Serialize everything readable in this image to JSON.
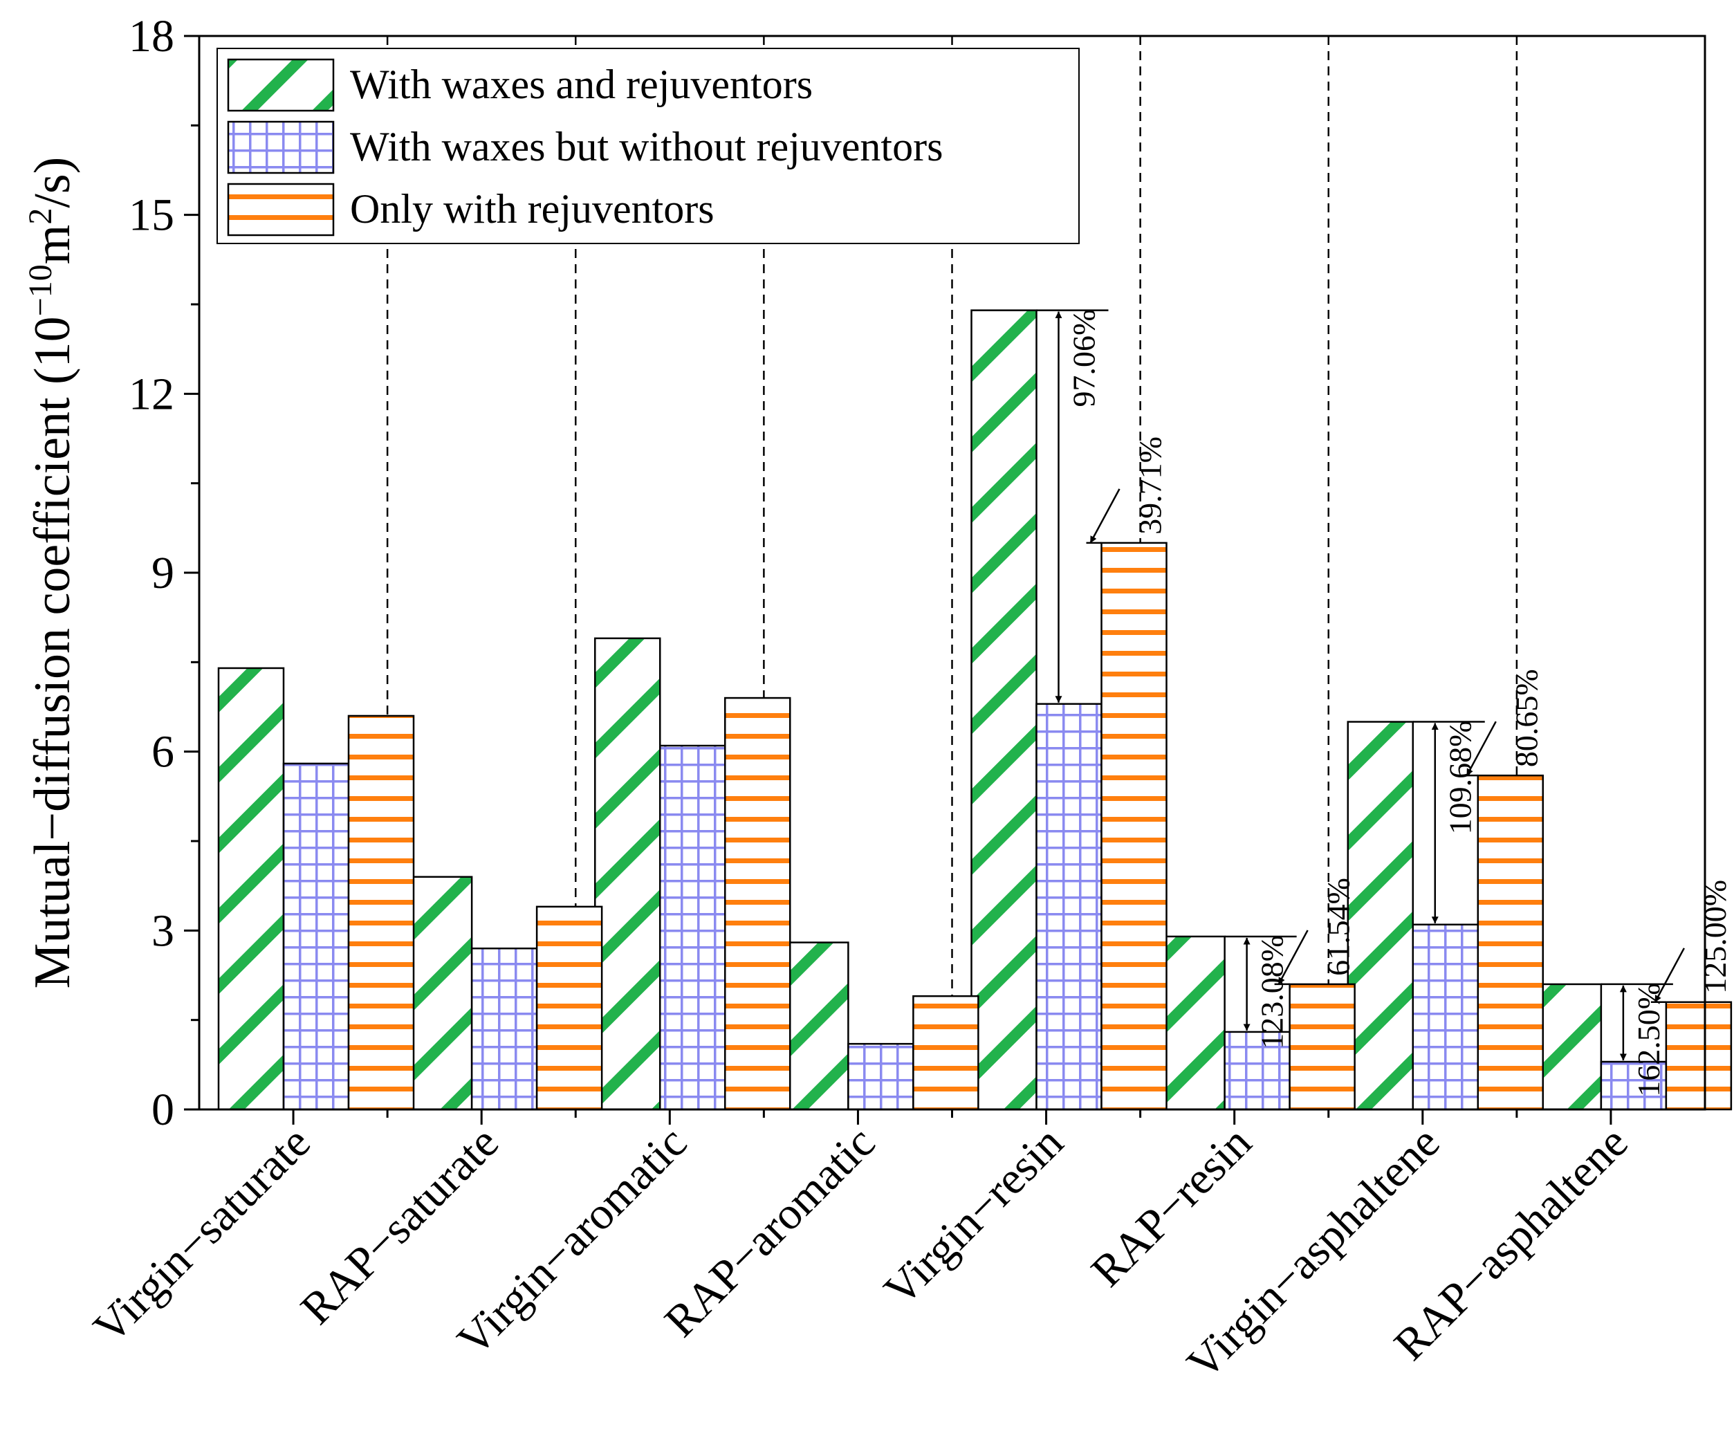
{
  "chart_data": {
    "type": "bar",
    "title": "",
    "xlabel": "",
    "ylabel": {
      "main": "Mutual−diffusion coefficient (10",
      "exp1": "−10",
      "mid": "m",
      "exp2": "2",
      "end": "/s)"
    },
    "ylim": [
      0,
      18
    ],
    "yticks": [
      0,
      3,
      6,
      9,
      12,
      15,
      18
    ],
    "ytick_labels": [
      "0",
      "3",
      "6",
      "9",
      "12",
      "15",
      "18"
    ],
    "grid": false,
    "legend_position": "top-left",
    "categories": [
      "Virgin−saturate",
      "RAP−saturate",
      "Virgin−aromatic",
      "RAP−aromatic",
      "Virgin−resin",
      "RAP−resin",
      "Virgin−asphaltene",
      "RAP−asphaltene"
    ],
    "series": [
      {
        "name": "With waxes and rejuventors",
        "pattern": "diagonal",
        "color": "#22b24c",
        "values": [
          7.4,
          3.9,
          7.9,
          2.8,
          13.4,
          2.9,
          6.5,
          2.1
        ]
      },
      {
        "name": "With waxes but without rejuventors",
        "pattern": "grid",
        "color": "#8a8af0",
        "values": [
          5.8,
          2.7,
          6.1,
          1.1,
          6.8,
          1.3,
          3.1,
          0.8
        ]
      },
      {
        "name": "Only with rejuventors",
        "pattern": "horizontal",
        "color": "#ff7f0e",
        "values": [
          6.6,
          3.4,
          6.9,
          1.9,
          9.5,
          2.1,
          5.6,
          1.8
        ]
      }
    ],
    "annotations": [
      {
        "category_index": 4,
        "from_value": 13.4,
        "to_value": 6.8,
        "label": "97.06%"
      },
      {
        "category_index": 4,
        "from_value": 9.5,
        "to_value": 6.8,
        "label": "39.71%"
      },
      {
        "category_index": 5,
        "from_value": 2.9,
        "to_value": 1.3,
        "label": "123.08%"
      },
      {
        "category_index": 5,
        "from_value": 2.1,
        "to_value": 1.3,
        "label": "61.54%"
      },
      {
        "category_index": 6,
        "from_value": 6.5,
        "to_value": 3.1,
        "label": "109.68%"
      },
      {
        "category_index": 6,
        "from_value": 5.6,
        "to_value": 3.1,
        "label": "80.65%"
      },
      {
        "category_index": 7,
        "from_value": 2.1,
        "to_value": 0.8,
        "label": "162.50%"
      },
      {
        "category_index": 7,
        "from_value": 1.8,
        "to_value": 0.8,
        "label": "125.00%"
      }
    ]
  }
}
